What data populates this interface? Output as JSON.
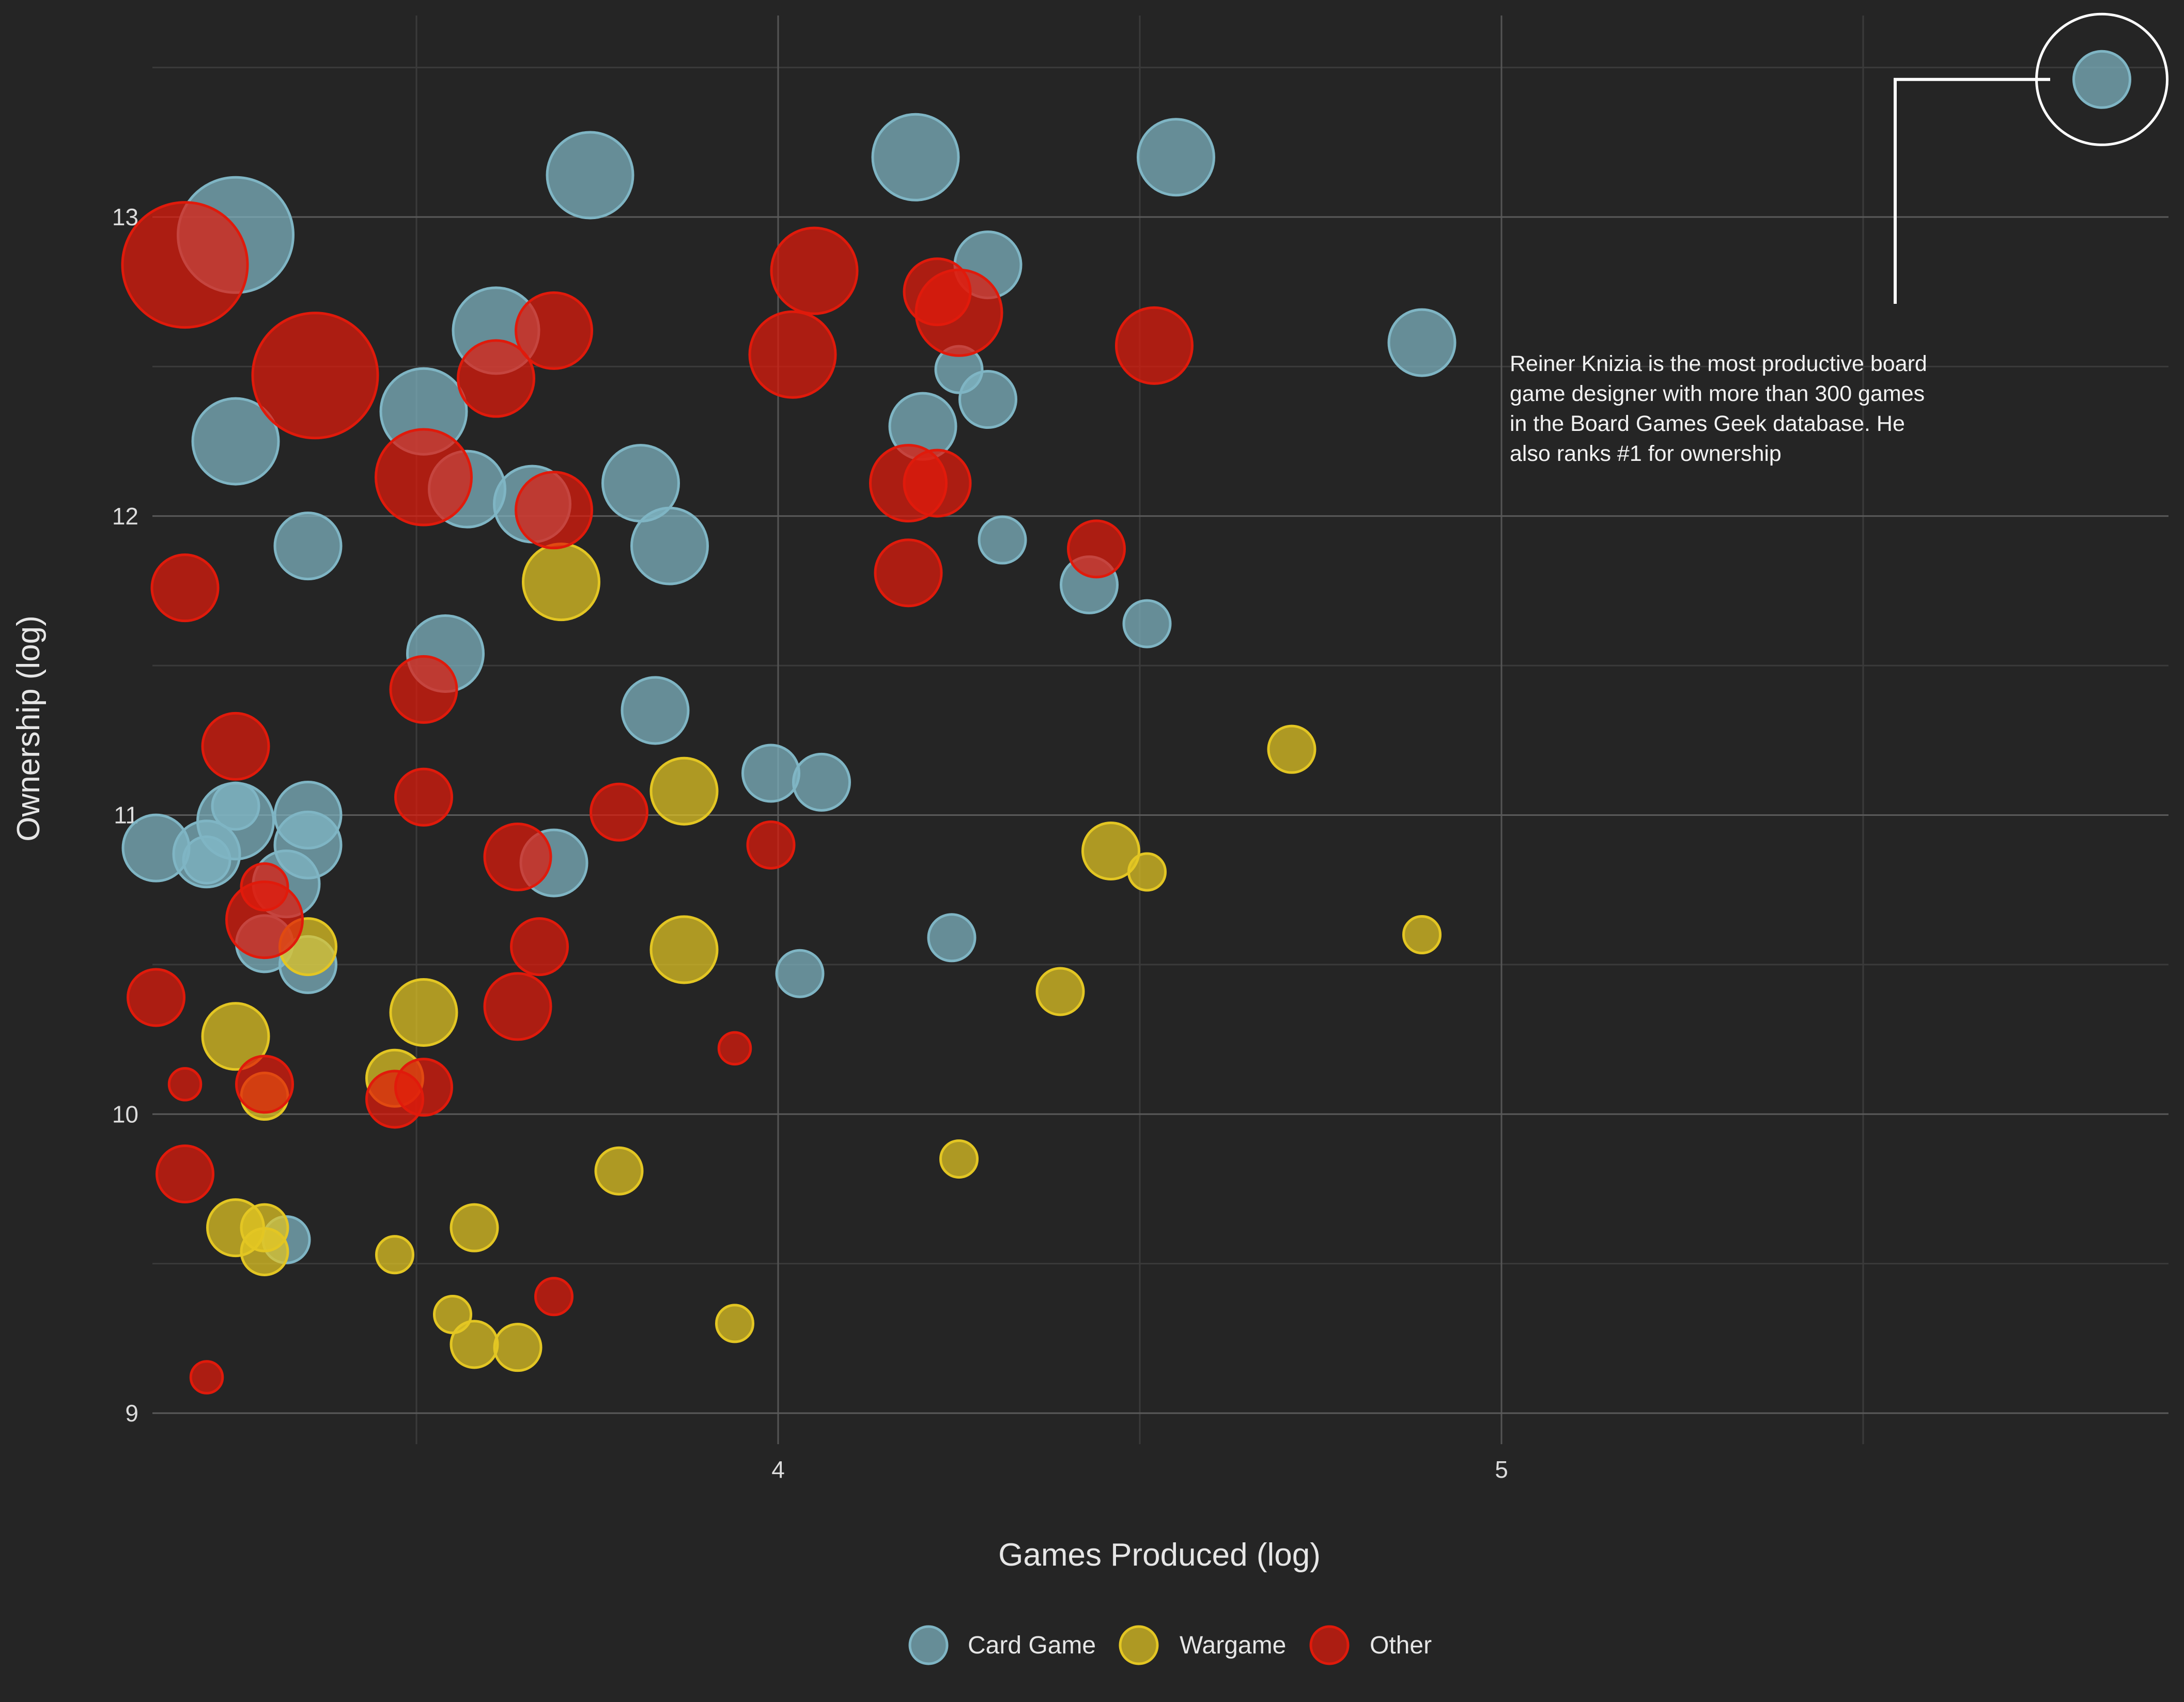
{
  "chart_data": {
    "type": "scatter",
    "xlabel": "Games Produced (log)",
    "ylabel": "Ownership (log)",
    "xlim": [
      3.14,
      5.95
    ],
    "ylim": [
      8.9,
      13.68
    ],
    "x_ticks": [
      4,
      5
    ],
    "y_ticks": [
      9,
      10,
      11,
      12,
      13
    ],
    "grid": true,
    "legend_position": "bottom",
    "colors": {
      "Card Game": "#7fb5c4",
      "Wargame": "#e3c623",
      "Other": "#e01a0b"
    },
    "series": [
      {
        "name": "Card Game",
        "color": "#7fb5c4"
      },
      {
        "name": "Wargame",
        "color": "#e3c623"
      },
      {
        "name": "Other",
        "color": "#e01a0b"
      }
    ],
    "points": [
      {
        "x": 5.83,
        "y": 13.46,
        "size": 3,
        "series": "Card Game"
      },
      {
        "x": 3.25,
        "y": 12.94,
        "size": 9,
        "series": "Card Game"
      },
      {
        "x": 3.74,
        "y": 13.14,
        "size": 6,
        "series": "Card Game"
      },
      {
        "x": 4.19,
        "y": 13.2,
        "size": 6,
        "series": "Card Game"
      },
      {
        "x": 4.55,
        "y": 13.2,
        "size": 5,
        "series": "Card Game"
      },
      {
        "x": 4.29,
        "y": 12.84,
        "size": 4,
        "series": "Card Game"
      },
      {
        "x": 3.61,
        "y": 12.62,
        "size": 6,
        "series": "Card Game"
      },
      {
        "x": 4.89,
        "y": 12.58,
        "size": 4,
        "series": "Card Game"
      },
      {
        "x": 4.25,
        "y": 12.49,
        "size": 2,
        "series": "Card Game"
      },
      {
        "x": 4.29,
        "y": 12.39,
        "size": 3,
        "series": "Card Game"
      },
      {
        "x": 3.51,
        "y": 12.35,
        "size": 6,
        "series": "Card Game"
      },
      {
        "x": 4.2,
        "y": 12.3,
        "size": 4,
        "series": "Card Game"
      },
      {
        "x": 3.25,
        "y": 12.25,
        "size": 6,
        "series": "Card Game"
      },
      {
        "x": 3.57,
        "y": 12.09,
        "size": 5,
        "series": "Card Game"
      },
      {
        "x": 3.81,
        "y": 12.11,
        "size": 5,
        "series": "Card Game"
      },
      {
        "x": 3.66,
        "y": 12.04,
        "size": 5,
        "series": "Card Game"
      },
      {
        "x": 3.35,
        "y": 11.9,
        "size": 4,
        "series": "Card Game"
      },
      {
        "x": 3.85,
        "y": 11.9,
        "size": 5,
        "series": "Card Game"
      },
      {
        "x": 4.31,
        "y": 11.92,
        "size": 2,
        "series": "Card Game"
      },
      {
        "x": 4.43,
        "y": 11.77,
        "size": 3,
        "series": "Card Game"
      },
      {
        "x": 4.51,
        "y": 11.64,
        "size": 2,
        "series": "Card Game"
      },
      {
        "x": 3.54,
        "y": 11.54,
        "size": 5,
        "series": "Card Game"
      },
      {
        "x": 3.83,
        "y": 11.35,
        "size": 4,
        "series": "Card Game"
      },
      {
        "x": 3.99,
        "y": 11.14,
        "size": 3,
        "series": "Card Game"
      },
      {
        "x": 4.06,
        "y": 11.11,
        "size": 3,
        "series": "Card Game"
      },
      {
        "x": 3.25,
        "y": 11.03,
        "size": 2,
        "series": "Card Game"
      },
      {
        "x": 3.25,
        "y": 10.98,
        "size": 5,
        "series": "Card Game"
      },
      {
        "x": 3.35,
        "y": 11.0,
        "size": 4,
        "series": "Card Game"
      },
      {
        "x": 3.14,
        "y": 10.89,
        "size": 4,
        "series": "Card Game"
      },
      {
        "x": 3.21,
        "y": 10.87,
        "size": 4,
        "series": "Card Game"
      },
      {
        "x": 3.35,
        "y": 10.9,
        "size": 4,
        "series": "Card Game"
      },
      {
        "x": 3.21,
        "y": 10.85,
        "size": 2,
        "series": "Card Game"
      },
      {
        "x": 3.69,
        "y": 10.84,
        "size": 4,
        "series": "Card Game"
      },
      {
        "x": 3.32,
        "y": 10.77,
        "size": 4,
        "series": "Card Game"
      },
      {
        "x": 4.24,
        "y": 10.59,
        "size": 2,
        "series": "Card Game"
      },
      {
        "x": 3.29,
        "y": 10.57,
        "size": 3,
        "series": "Card Game"
      },
      {
        "x": 3.35,
        "y": 10.5,
        "size": 3,
        "series": "Card Game"
      },
      {
        "x": 4.03,
        "y": 10.47,
        "size": 2,
        "series": "Card Game"
      },
      {
        "x": 3.32,
        "y": 9.58,
        "size": 2,
        "series": "Card Game"
      },
      {
        "x": 3.7,
        "y": 11.78,
        "size": 5,
        "series": "Wargame"
      },
      {
        "x": 4.71,
        "y": 11.22,
        "size": 2,
        "series": "Wargame"
      },
      {
        "x": 3.87,
        "y": 11.08,
        "size": 4,
        "series": "Wargame"
      },
      {
        "x": 4.46,
        "y": 10.88,
        "size": 3,
        "series": "Wargame"
      },
      {
        "x": 4.51,
        "y": 10.81,
        "size": 1,
        "series": "Wargame"
      },
      {
        "x": 4.89,
        "y": 10.6,
        "size": 1,
        "series": "Wargame"
      },
      {
        "x": 3.35,
        "y": 10.56,
        "size": 3,
        "series": "Wargame"
      },
      {
        "x": 3.87,
        "y": 10.55,
        "size": 4,
        "series": "Wargame"
      },
      {
        "x": 4.39,
        "y": 10.41,
        "size": 2,
        "series": "Wargame"
      },
      {
        "x": 3.51,
        "y": 10.34,
        "size": 4,
        "series": "Wargame"
      },
      {
        "x": 3.25,
        "y": 10.26,
        "size": 4,
        "series": "Wargame"
      },
      {
        "x": 3.47,
        "y": 10.12,
        "size": 3,
        "series": "Wargame"
      },
      {
        "x": 3.29,
        "y": 10.06,
        "size": 2,
        "series": "Wargame"
      },
      {
        "x": 3.78,
        "y": 9.81,
        "size": 2,
        "series": "Wargame"
      },
      {
        "x": 4.25,
        "y": 9.85,
        "size": 1,
        "series": "Wargame"
      },
      {
        "x": 3.25,
        "y": 9.62,
        "size": 3,
        "series": "Wargame"
      },
      {
        "x": 3.29,
        "y": 9.62,
        "size": 2,
        "series": "Wargame"
      },
      {
        "x": 3.58,
        "y": 9.62,
        "size": 2,
        "series": "Wargame"
      },
      {
        "x": 3.29,
        "y": 9.54,
        "size": 2,
        "series": "Wargame"
      },
      {
        "x": 3.47,
        "y": 9.53,
        "size": 1,
        "series": "Wargame"
      },
      {
        "x": 3.55,
        "y": 9.33,
        "size": 1,
        "series": "Wargame"
      },
      {
        "x": 3.94,
        "y": 9.3,
        "size": 1,
        "series": "Wargame"
      },
      {
        "x": 3.58,
        "y": 9.23,
        "size": 2,
        "series": "Wargame"
      },
      {
        "x": 3.64,
        "y": 9.22,
        "size": 2,
        "series": "Wargame"
      },
      {
        "x": 3.18,
        "y": 12.84,
        "size": 10,
        "series": "Other"
      },
      {
        "x": 3.36,
        "y": 12.47,
        "size": 10,
        "series": "Other"
      },
      {
        "x": 3.69,
        "y": 12.62,
        "size": 5,
        "series": "Other"
      },
      {
        "x": 3.61,
        "y": 12.46,
        "size": 5,
        "series": "Other"
      },
      {
        "x": 4.05,
        "y": 12.82,
        "size": 6,
        "series": "Other"
      },
      {
        "x": 4.02,
        "y": 12.54,
        "size": 6,
        "series": "Other"
      },
      {
        "x": 4.22,
        "y": 12.75,
        "size": 4,
        "series": "Other"
      },
      {
        "x": 4.25,
        "y": 12.68,
        "size": 6,
        "series": "Other"
      },
      {
        "x": 4.52,
        "y": 12.57,
        "size": 5,
        "series": "Other"
      },
      {
        "x": 3.51,
        "y": 12.13,
        "size": 7,
        "series": "Other"
      },
      {
        "x": 4.18,
        "y": 12.11,
        "size": 5,
        "series": "Other"
      },
      {
        "x": 4.22,
        "y": 12.11,
        "size": 4,
        "series": "Other"
      },
      {
        "x": 3.69,
        "y": 12.02,
        "size": 5,
        "series": "Other"
      },
      {
        "x": 4.44,
        "y": 11.89,
        "size": 3,
        "series": "Other"
      },
      {
        "x": 4.18,
        "y": 11.81,
        "size": 4,
        "series": "Other"
      },
      {
        "x": 3.18,
        "y": 11.76,
        "size": 4,
        "series": "Other"
      },
      {
        "x": 3.51,
        "y": 11.42,
        "size": 4,
        "series": "Other"
      },
      {
        "x": 3.25,
        "y": 11.23,
        "size": 4,
        "series": "Other"
      },
      {
        "x": 3.51,
        "y": 11.06,
        "size": 3,
        "series": "Other"
      },
      {
        "x": 3.78,
        "y": 11.01,
        "size": 3,
        "series": "Other"
      },
      {
        "x": 3.99,
        "y": 10.9,
        "size": 2,
        "series": "Other"
      },
      {
        "x": 3.64,
        "y": 10.86,
        "size": 4,
        "series": "Other"
      },
      {
        "x": 3.29,
        "y": 10.76,
        "size": 2,
        "series": "Other"
      },
      {
        "x": 3.29,
        "y": 10.65,
        "size": 5,
        "series": "Other"
      },
      {
        "x": 3.67,
        "y": 10.56,
        "size": 3,
        "series": "Other"
      },
      {
        "x": 3.14,
        "y": 10.39,
        "size": 3,
        "series": "Other"
      },
      {
        "x": 3.64,
        "y": 10.36,
        "size": 4,
        "series": "Other"
      },
      {
        "x": 3.94,
        "y": 10.22,
        "size": 0.5,
        "series": "Other"
      },
      {
        "x": 3.18,
        "y": 10.1,
        "size": 0.5,
        "series": "Other"
      },
      {
        "x": 3.29,
        "y": 10.1,
        "size": 3,
        "series": "Other"
      },
      {
        "x": 3.51,
        "y": 10.09,
        "size": 3,
        "series": "Other"
      },
      {
        "x": 3.47,
        "y": 10.05,
        "size": 3,
        "series": "Other"
      },
      {
        "x": 3.18,
        "y": 9.8,
        "size": 3,
        "series": "Other"
      },
      {
        "x": 3.69,
        "y": 9.39,
        "size": 1,
        "series": "Other"
      },
      {
        "x": 3.21,
        "y": 9.12,
        "size": 0.5,
        "series": "Other"
      }
    ],
    "annotation": {
      "lines": [
        "Reiner Knizia is the most productive board",
        "game designer with more than 300 games",
        "in the Board Games Geek database. He",
        "also ranks #1 for ownership"
      ],
      "point_index": 0
    }
  }
}
